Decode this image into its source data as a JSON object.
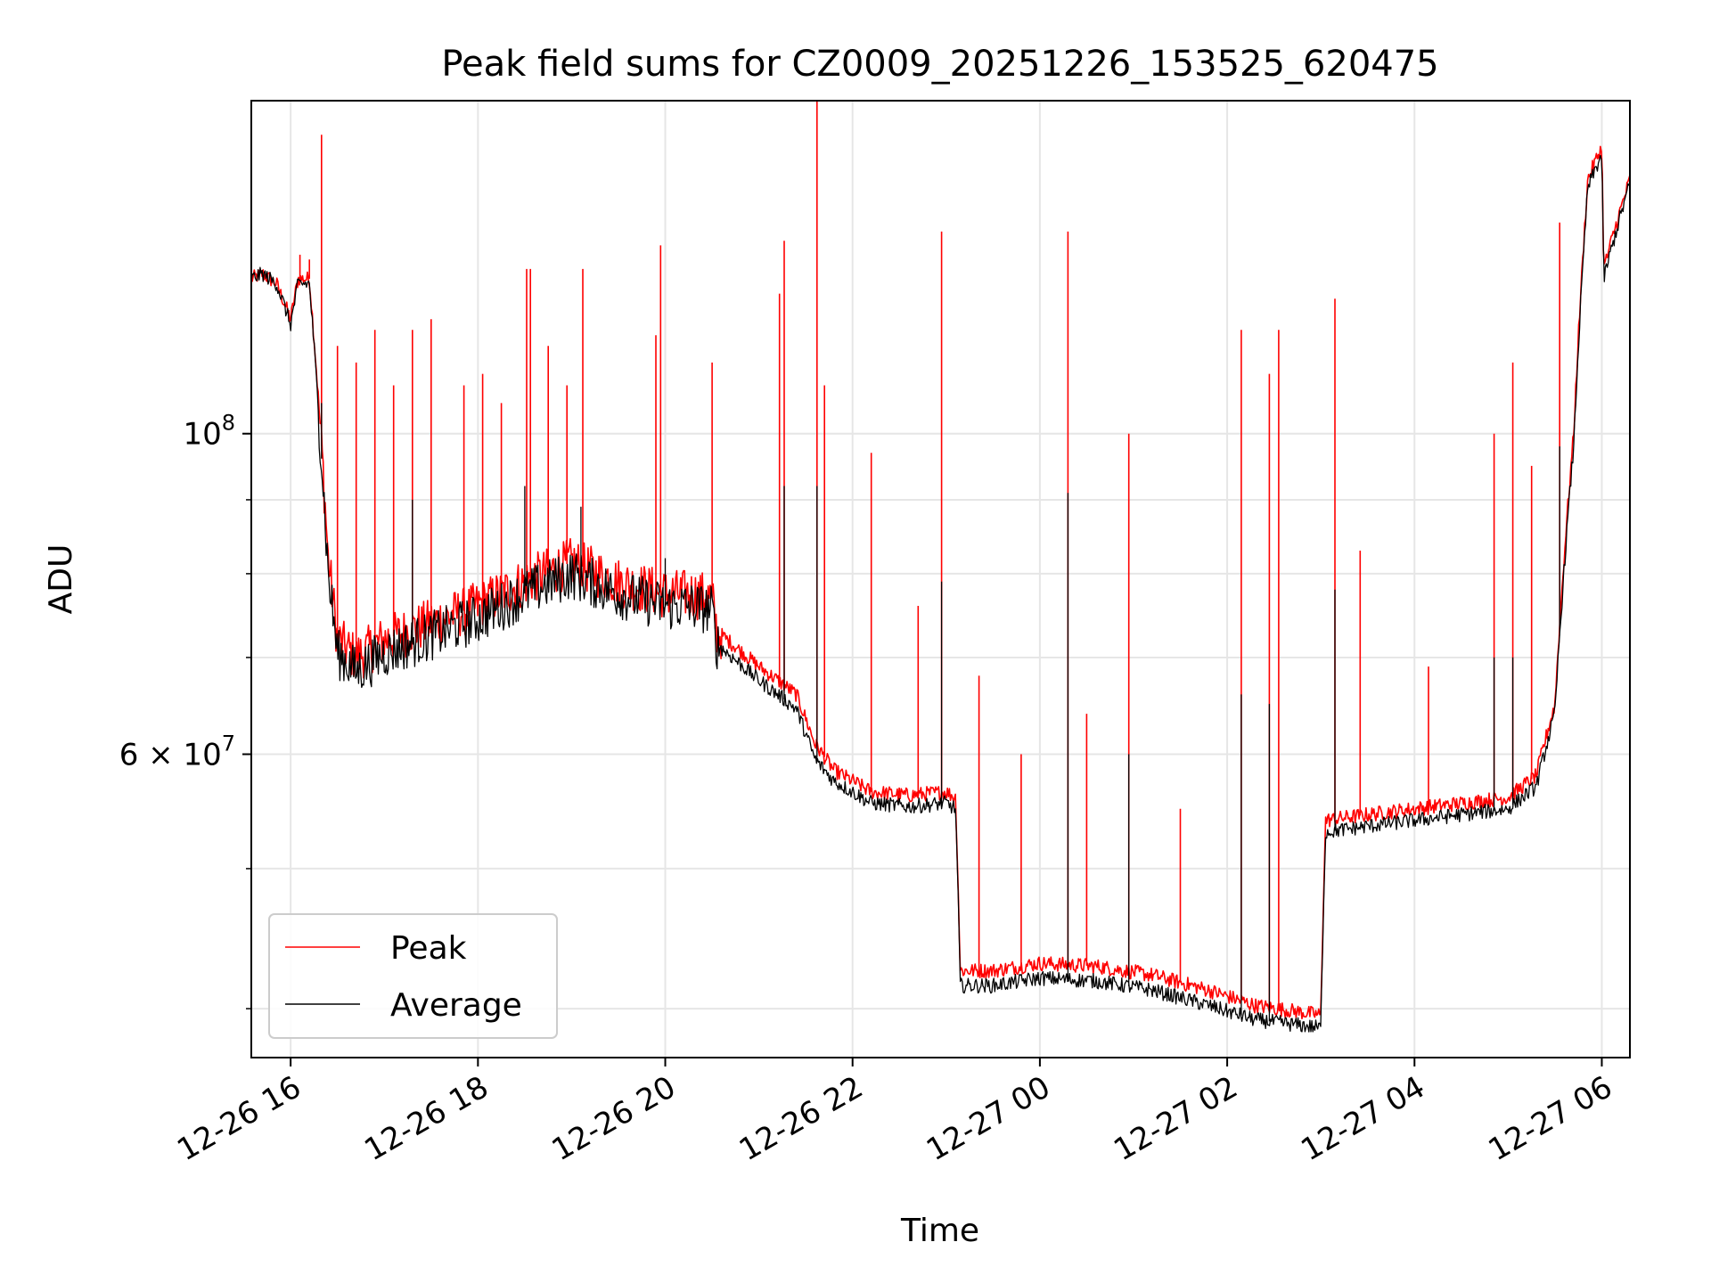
{
  "chart_data": {
    "type": "line",
    "title": "Peak field sums for CZ0009_20251226_153525_620475",
    "xlabel": "Time",
    "ylabel": "ADU",
    "yscale": "log",
    "ylim": [
      37000000,
      170000000
    ],
    "xlim_hours": [
      15.58,
      30.3
    ],
    "x_ticks": [
      {
        "hours": 16,
        "label": "12-26 16"
      },
      {
        "hours": 18,
        "label": "12-26 18"
      },
      {
        "hours": 20,
        "label": "12-26 20"
      },
      {
        "hours": 22,
        "label": "12-26 22"
      },
      {
        "hours": 24,
        "label": "12-27 00"
      },
      {
        "hours": 26,
        "label": "12-27 02"
      },
      {
        "hours": 28,
        "label": "12-27 04"
      },
      {
        "hours": 30,
        "label": "12-27 06"
      }
    ],
    "y_major_ticks": [
      {
        "value": 100000000,
        "base": "10",
        "exp": "8"
      },
      {
        "value": 60000000,
        "base": "6 × 10",
        "exp": "7"
      }
    ],
    "y_minor_ticks": [
      40000000,
      50000000,
      70000000,
      80000000,
      90000000
    ],
    "grid": true,
    "legend_position": "lower-left",
    "series": [
      {
        "name": "Peak",
        "color": "#ff0000",
        "baseline": [
          [
            15.58,
            128000000.0
          ],
          [
            15.7,
            129000000.0
          ],
          [
            15.85,
            127000000.0
          ],
          [
            16.0,
            120000000.0
          ],
          [
            16.08,
            128000000.0
          ],
          [
            16.2,
            128000000.0
          ],
          [
            16.3,
            105000000.0
          ],
          [
            16.4,
            82000000.0
          ],
          [
            16.5,
            72000000.0
          ],
          [
            16.7,
            70000000.0
          ],
          [
            17.0,
            72000000.0
          ],
          [
            17.5,
            74000000.0
          ],
          [
            18.0,
            76000000.0
          ],
          [
            18.5,
            79000000.0
          ],
          [
            19.0,
            81500000.0
          ],
          [
            19.5,
            79000000.0
          ],
          [
            20.0,
            77500000.0
          ],
          [
            20.3,
            77500000.0
          ],
          [
            20.5,
            77000000.0
          ],
          [
            20.55,
            73000000.0
          ],
          [
            21.0,
            69000000.0
          ],
          [
            21.4,
            66000000.0
          ],
          [
            21.6,
            61000000.0
          ],
          [
            21.8,
            58500000.0
          ],
          [
            22.2,
            56500000.0
          ],
          [
            22.6,
            56200000.0
          ],
          [
            23.0,
            56500000.0
          ],
          [
            23.1,
            56000000.0
          ],
          [
            23.15,
            42500000.0
          ],
          [
            23.5,
            42500000.0
          ],
          [
            24.0,
            43000000.0
          ],
          [
            24.6,
            42800000.0
          ],
          [
            25.2,
            42200000.0
          ],
          [
            25.8,
            41200000.0
          ],
          [
            26.3,
            40200000.0
          ],
          [
            27.0,
            39600000.0
          ],
          [
            27.05,
            54000000.0
          ],
          [
            27.5,
            54500000.0
          ],
          [
            28.0,
            55000000.0
          ],
          [
            28.5,
            55500000.0
          ],
          [
            29.0,
            56000000.0
          ],
          [
            29.3,
            58000000.0
          ],
          [
            29.5,
            65000000.0
          ],
          [
            29.7,
            100000000.0
          ],
          [
            29.85,
            150000000.0
          ],
          [
            30.0,
            158000000.0
          ],
          [
            30.02,
            130000000.0
          ],
          [
            30.3,
            150000000.0
          ]
        ],
        "spikes": [
          [
            16.33,
            161000000.0
          ],
          [
            16.1,
            133000000.0
          ],
          [
            16.2,
            132000000.0
          ],
          [
            16.5,
            115000000.0
          ],
          [
            16.7,
            112000000.0
          ],
          [
            16.9,
            118000000.0
          ],
          [
            17.1,
            108000000.0
          ],
          [
            17.3,
            118000000.0
          ],
          [
            17.5,
            120000000.0
          ],
          [
            17.85,
            108000000.0
          ],
          [
            18.05,
            110000000.0
          ],
          [
            18.25,
            105000000.0
          ],
          [
            18.52,
            130000000.0
          ],
          [
            18.56,
            130000000.0
          ],
          [
            18.75,
            115000000.0
          ],
          [
            18.95,
            108000000.0
          ],
          [
            19.12,
            130000000.0
          ],
          [
            19.9,
            117000000.0
          ],
          [
            19.95,
            135000000.0
          ],
          [
            20.5,
            112000000.0
          ],
          [
            21.22,
            125000000.0
          ],
          [
            21.27,
            136000000.0
          ],
          [
            21.62,
            170000000.0
          ],
          [
            21.7,
            108000000.0
          ],
          [
            22.2,
            97000000.0
          ],
          [
            22.7,
            76000000.0
          ],
          [
            22.95,
            138000000.0
          ],
          [
            23.35,
            68000000.0
          ],
          [
            23.8,
            60000000.0
          ],
          [
            24.3,
            138000000.0
          ],
          [
            24.5,
            64000000.0
          ],
          [
            24.95,
            100000000.0
          ],
          [
            25.5,
            55000000.0
          ],
          [
            26.15,
            118000000.0
          ],
          [
            26.45,
            110000000.0
          ],
          [
            26.55,
            118000000.0
          ],
          [
            27.15,
            124000000.0
          ],
          [
            27.42,
            83000000.0
          ],
          [
            28.15,
            69000000.0
          ],
          [
            28.85,
            100000000.0
          ],
          [
            29.05,
            112000000.0
          ],
          [
            29.25,
            95000000.0
          ],
          [
            29.55,
            140000000.0
          ]
        ]
      },
      {
        "name": "Average",
        "color": "#000000",
        "baseline": [
          [
            15.58,
            128000000.0
          ],
          [
            15.7,
            129000000.0
          ],
          [
            15.85,
            127000000.0
          ],
          [
            16.0,
            119000000.0
          ],
          [
            16.08,
            127000000.0
          ],
          [
            16.2,
            127000000.0
          ],
          [
            16.3,
            103000000.0
          ],
          [
            16.4,
            80000000.0
          ],
          [
            16.5,
            70500000.0
          ],
          [
            16.7,
            68500000.0
          ],
          [
            17.0,
            70500000.0
          ],
          [
            17.5,
            72500000.0
          ],
          [
            18.0,
            74500000.0
          ],
          [
            18.5,
            77500000.0
          ],
          [
            19.0,
            80000000.0
          ],
          [
            19.5,
            77500000.0
          ],
          [
            20.0,
            76000000.0
          ],
          [
            20.3,
            76000000.0
          ],
          [
            20.5,
            75500000.0
          ],
          [
            20.55,
            71500000.0
          ],
          [
            21.0,
            67500000.0
          ],
          [
            21.4,
            64500000.0
          ],
          [
            21.6,
            59500000.0
          ],
          [
            21.8,
            57500000.0
          ],
          [
            22.2,
            55500000.0
          ],
          [
            22.6,
            55200000.0
          ],
          [
            23.0,
            55500000.0
          ],
          [
            23.1,
            55000000.0
          ],
          [
            23.15,
            41500000.0
          ],
          [
            23.5,
            41500000.0
          ],
          [
            24.0,
            42000000.0
          ],
          [
            24.6,
            41800000.0
          ],
          [
            25.2,
            41200000.0
          ],
          [
            25.8,
            40200000.0
          ],
          [
            26.3,
            39300000.0
          ],
          [
            27.0,
            38800000.0
          ],
          [
            27.05,
            53000000.0
          ],
          [
            27.5,
            53500000.0
          ],
          [
            28.0,
            54000000.0
          ],
          [
            28.5,
            54500000.0
          ],
          [
            29.0,
            55000000.0
          ],
          [
            29.3,
            57000000.0
          ],
          [
            29.5,
            64000000.0
          ],
          [
            29.7,
            98000000.0
          ],
          [
            29.85,
            148000000.0
          ],
          [
            30.0,
            156000000.0
          ],
          [
            30.02,
            128000000.0
          ],
          [
            30.3,
            149000000.0
          ]
        ],
        "spikes": [
          [
            16.33,
            105000000.0
          ],
          [
            17.3,
            90000000.0
          ],
          [
            18.5,
            92000000.0
          ],
          [
            19.1,
            89000000.0
          ],
          [
            20.0,
            82000000.0
          ],
          [
            21.27,
            92000000.0
          ],
          [
            21.62,
            92000000.0
          ],
          [
            22.95,
            79000000.0
          ],
          [
            24.3,
            91000000.0
          ],
          [
            24.95,
            60000000.0
          ],
          [
            26.15,
            66000000.0
          ],
          [
            26.45,
            65000000.0
          ],
          [
            27.15,
            78000000.0
          ],
          [
            28.85,
            70000000.0
          ],
          [
            29.05,
            70000000.0
          ],
          [
            29.55,
            98000000.0
          ]
        ]
      }
    ]
  }
}
